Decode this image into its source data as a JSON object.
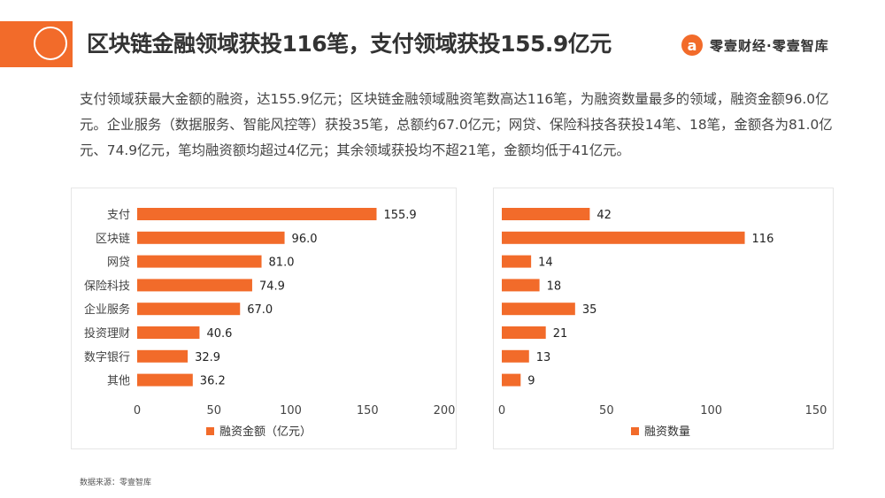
{
  "header": {
    "title": "区块链金融领域获投116笔，支付领域获投155.9亿元",
    "brand_logo": "a",
    "brand_name": "零壹财经·零壹智库",
    "accent_color": "#f26b2a"
  },
  "description": "支付领域获最大金额的融资，达155.9亿元；区块链金融领域融资笔数高达116笔，为融资数量最多的领域，融资金额96.0亿元。企业服务（数据服务、智能风控等）获投35笔，总额约67.0亿元；网贷、保险科技各获投14笔、18笔，金额各为81.0亿元、74.9亿元，笔均融资额均超过4亿元；其余领域获投均不超21笔，金额均低于41亿元。",
  "source": "数据来源：零壹智库",
  "chart_data": [
    {
      "type": "bar",
      "orientation": "horizontal",
      "categories": [
        "支付",
        "区块链",
        "网贷",
        "保险科技",
        "企业服务",
        "投资理财",
        "数字银行",
        "其他"
      ],
      "series": [
        {
          "name": "融资金额（亿元）",
          "values": [
            155.9,
            96.0,
            81.0,
            74.9,
            67.0,
            40.6,
            32.9,
            36.2
          ],
          "labels": [
            "155.9",
            "96.0",
            "81.0",
            "74.9",
            "67.0",
            "40.6",
            "32.9",
            "36.2"
          ]
        }
      ],
      "xlim": [
        0,
        200
      ],
      "xticks": [
        0,
        50,
        100,
        150,
        200
      ],
      "grid": false,
      "legend_position": "bottom",
      "color": "#f26b2a"
    },
    {
      "type": "bar",
      "orientation": "horizontal",
      "categories": [
        "支付",
        "区块链",
        "网贷",
        "保险科技",
        "企业服务",
        "投资理财",
        "数字银行",
        "其他"
      ],
      "series": [
        {
          "name": "融资数量",
          "values": [
            42,
            116,
            14,
            18,
            35,
            21,
            13,
            9
          ],
          "labels": [
            "42",
            "116",
            "14",
            "18",
            "35",
            "21",
            "13",
            "9"
          ]
        }
      ],
      "xlim": [
        0,
        150
      ],
      "xticks": [
        0,
        50,
        100,
        150
      ],
      "grid": false,
      "legend_position": "bottom",
      "color": "#f26b2a"
    }
  ]
}
